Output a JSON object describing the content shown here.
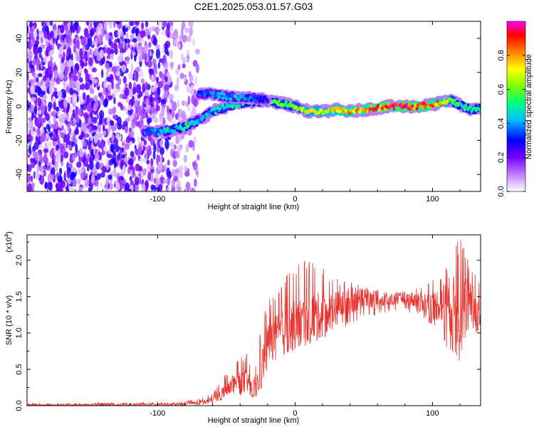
{
  "title": "C2E1.2025.053.01.57.G03",
  "chart_data": [
    {
      "type": "heatmap",
      "xlabel": "Height of straight line (km)",
      "ylabel": "Frequency (Hz)",
      "xlim": [
        -195,
        135
      ],
      "ylim": [
        -50,
        50
      ],
      "x_ticks": [
        -100,
        0,
        100
      ],
      "x_tick_labels": [
        "-100",
        "0",
        "100"
      ],
      "y_ticks": [
        -40,
        -20,
        0,
        20,
        40
      ],
      "y_tick_labels": [
        "-40",
        "-20",
        "0",
        "20",
        "40"
      ],
      "colorbar": {
        "label": "Normalized spectral amplitude",
        "range": [
          0,
          1
        ],
        "ticks": [
          0.0,
          0.2,
          0.4,
          0.6,
          0.8
        ],
        "tick_labels": [
          "0.0",
          "0.2",
          "0.4",
          "0.6",
          "0.8"
        ],
        "colormap": [
          "#ffffff",
          "#cc99ff",
          "#7a00ff",
          "#0000ff",
          "#00bfff",
          "#00ff7f",
          "#7fff00",
          "#ffff00",
          "#ff8000",
          "#ff0000",
          "#ff00ff"
        ]
      },
      "ridge": {
        "x": [
          -110,
          -100,
          -90,
          -80,
          -75,
          -70,
          -60,
          -50,
          -40,
          -30,
          -20,
          -10,
          0,
          10,
          20,
          30,
          40,
          50,
          60,
          70,
          80,
          90,
          100,
          110,
          115,
          120,
          125,
          130,
          135
        ],
        "y": [
          -15,
          -15,
          -14,
          -12,
          -10,
          -8,
          -3,
          0,
          2,
          3,
          3,
          2,
          0,
          -3,
          -3,
          -2,
          -3,
          -2,
          -1,
          0,
          0,
          0,
          1,
          3,
          3,
          1,
          -1,
          -2,
          -1
        ],
        "amplitude": [
          0.35,
          0.4,
          0.45,
          0.5,
          0.45,
          0.4,
          0.45,
          0.45,
          0.5,
          0.55,
          0.55,
          0.6,
          0.6,
          0.7,
          0.7,
          0.75,
          0.8,
          0.85,
          0.9,
          0.95,
          0.95,
          0.9,
          0.85,
          0.7,
          0.6,
          0.55,
          0.5,
          0.5,
          0.5
        ]
      },
      "upper_branch": {
        "x": [
          -70,
          -60,
          -50,
          -40,
          -30,
          -20
        ],
        "y": [
          8,
          7,
          6,
          5,
          5,
          4
        ],
        "amplitude": [
          0.35,
          0.4,
          0.4,
          0.4,
          0.35,
          0.3
        ]
      },
      "noise_region_x": [
        -195,
        -70
      ]
    },
    {
      "type": "line",
      "xlabel": "Height of straight line (km)",
      "ylabel": "SNR (10 * v/v)",
      "y_scale_label": "(x10",
      "y_scale_exp": "4",
      "y_scale_close": ")",
      "xlim": [
        -195,
        135
      ],
      "ylim": [
        0,
        2.35
      ],
      "x_ticks": [
        -100,
        0,
        100
      ],
      "x_tick_labels": [
        "-100",
        "0",
        "100"
      ],
      "y_ticks": [
        0.0,
        0.5,
        1.0,
        1.5,
        2.0
      ],
      "y_tick_labels": [
        "0.0",
        "0.5",
        "1.0",
        "1.5",
        "2.0"
      ],
      "color": "#e8302a",
      "series": [
        {
          "x": [
            -195,
            -180,
            -160,
            -140,
            -120,
            -100,
            -90,
            -80,
            -70,
            -60,
            -55,
            -50,
            -45,
            -40,
            -35,
            -30,
            -25,
            -20,
            -15,
            -10,
            -5,
            0,
            10,
            20,
            30,
            40,
            50,
            60,
            70,
            80,
            90,
            100,
            105,
            110,
            115,
            120,
            125,
            130,
            135
          ],
          "values": [
            0.01,
            0.01,
            0.01,
            0.015,
            0.015,
            0.02,
            0.02,
            0.025,
            0.04,
            0.08,
            0.15,
            0.22,
            0.33,
            0.3,
            0.35,
            0.15,
            0.45,
            0.85,
            0.95,
            0.98,
            1.05,
            1.1,
            1.2,
            1.25,
            1.35,
            1.45,
            1.48,
            1.42,
            1.45,
            1.48,
            1.45,
            1.38,
            1.4,
            1.42,
            1.35,
            1.3,
            1.45,
            1.35,
            1.2
          ],
          "envelope_low": [
            0.0,
            0.0,
            0.0,
            0.0,
            0.0,
            0.0,
            0.0,
            0.0,
            0.0,
            0.02,
            0.05,
            0.1,
            0.15,
            0.1,
            0.2,
            0.05,
            0.2,
            0.5,
            0.6,
            0.65,
            0.7,
            0.75,
            0.85,
            0.9,
            1.0,
            1.1,
            1.2,
            1.25,
            1.3,
            1.3,
            1.25,
            1.1,
            1.0,
            0.8,
            0.7,
            0.55,
            0.9,
            1.0,
            0.95
          ],
          "envelope_high": [
            0.03,
            0.03,
            0.03,
            0.04,
            0.04,
            0.05,
            0.05,
            0.06,
            0.1,
            0.18,
            0.3,
            0.45,
            0.55,
            0.65,
            0.75,
            0.35,
            1.1,
            1.45,
            1.6,
            1.7,
            1.85,
            1.9,
            2.1,
            1.9,
            1.75,
            1.7,
            1.65,
            1.6,
            1.55,
            1.6,
            1.65,
            1.75,
            1.8,
            1.95,
            2.15,
            2.35,
            2.05,
            1.9,
            1.75
          ]
        }
      ]
    }
  ]
}
